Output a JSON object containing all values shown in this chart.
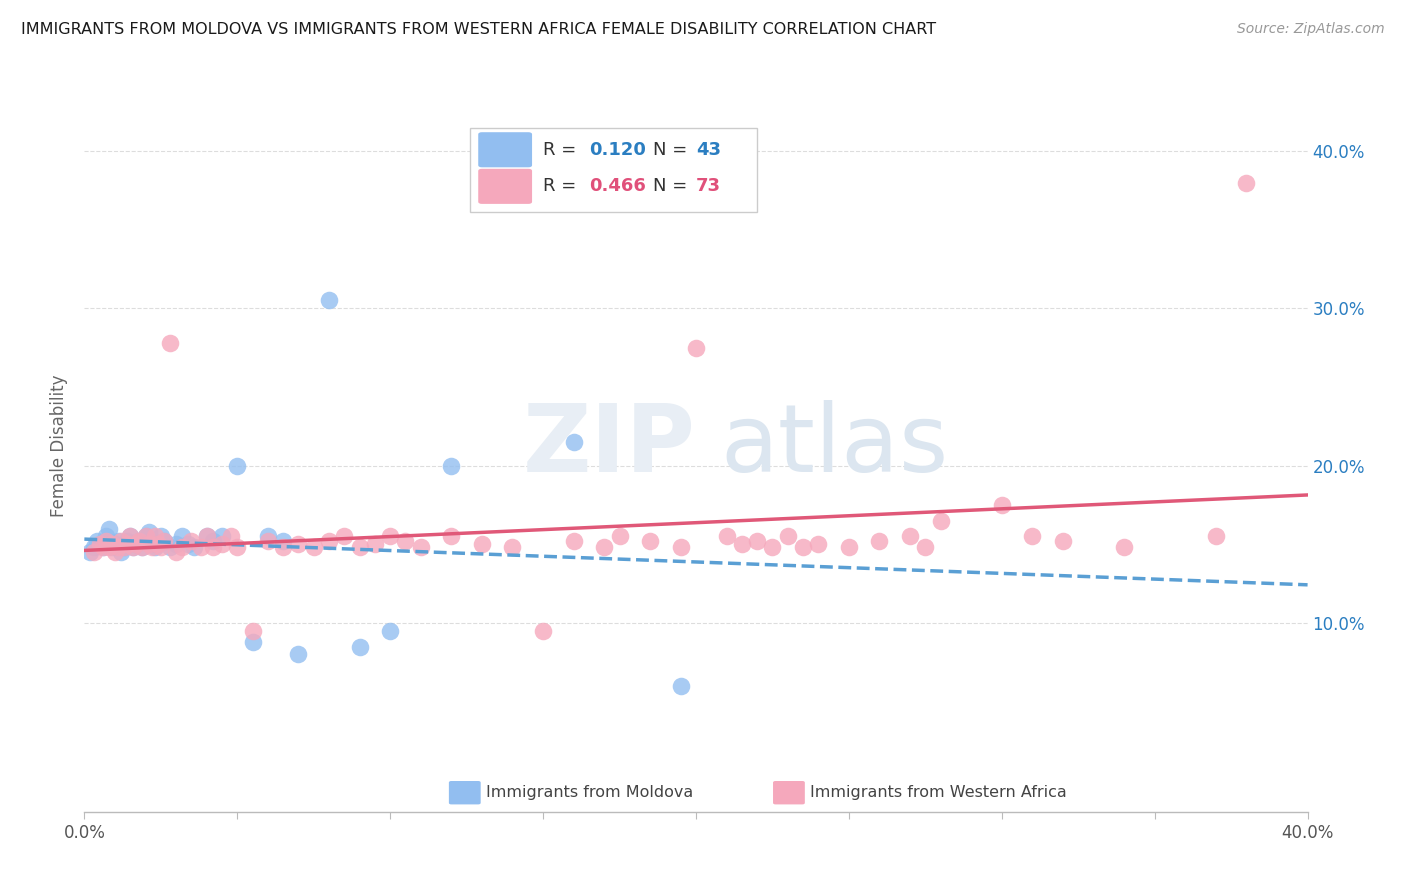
{
  "title": "IMMIGRANTS FROM MOLDOVA VS IMMIGRANTS FROM WESTERN AFRICA FEMALE DISABILITY CORRELATION CHART",
  "source": "Source: ZipAtlas.com",
  "ylabel": "Female Disability",
  "xlim": [
    0.0,
    0.4
  ],
  "ylim": [
    -0.02,
    0.445
  ],
  "yticks": [
    0.1,
    0.2,
    0.3,
    0.4
  ],
  "ytick_labels": [
    "10.0%",
    "20.0%",
    "30.0%",
    "40.0%"
  ],
  "xticks": [
    0.0,
    0.05,
    0.1,
    0.15,
    0.2,
    0.25,
    0.3,
    0.35,
    0.4
  ],
  "xtick_labels": [
    "0.0%",
    "",
    "",
    "",
    "",
    "",
    "",
    "",
    "40.0%"
  ],
  "moldova_color": "#92BEF0",
  "western_africa_color": "#F5A8BC",
  "moldova_R": 0.12,
  "moldova_N": 43,
  "western_africa_R": 0.466,
  "western_africa_N": 73,
  "legend_R_color": "#2B7EC1",
  "legend_wa_color": "#E0507A",
  "background_color": "#FFFFFF",
  "grid_color": "#DDDDDD",
  "moldova_line_color": "#5A9FD4",
  "western_africa_line_color": "#E05878",
  "moldova_scatter_x": [
    0.002,
    0.003,
    0.004,
    0.005,
    0.006,
    0.007,
    0.008,
    0.009,
    0.01,
    0.011,
    0.012,
    0.013,
    0.014,
    0.015,
    0.016,
    0.017,
    0.018,
    0.019,
    0.02,
    0.021,
    0.022,
    0.023,
    0.025,
    0.026,
    0.028,
    0.03,
    0.032,
    0.034,
    0.036,
    0.04,
    0.042,
    0.045,
    0.05,
    0.055,
    0.06,
    0.065,
    0.07,
    0.08,
    0.09,
    0.1,
    0.12,
    0.16,
    0.195
  ],
  "moldova_scatter_y": [
    0.145,
    0.148,
    0.152,
    0.15,
    0.148,
    0.155,
    0.16,
    0.148,
    0.15,
    0.152,
    0.145,
    0.148,
    0.152,
    0.155,
    0.148,
    0.15,
    0.152,
    0.148,
    0.155,
    0.158,
    0.15,
    0.148,
    0.155,
    0.152,
    0.148,
    0.15,
    0.155,
    0.15,
    0.148,
    0.155,
    0.152,
    0.155,
    0.2,
    0.088,
    0.155,
    0.152,
    0.08,
    0.305,
    0.085,
    0.095,
    0.2,
    0.215,
    0.06
  ],
  "western_africa_scatter_x": [
    0.003,
    0.005,
    0.006,
    0.007,
    0.008,
    0.009,
    0.01,
    0.011,
    0.012,
    0.013,
    0.014,
    0.015,
    0.016,
    0.017,
    0.018,
    0.019,
    0.02,
    0.021,
    0.022,
    0.023,
    0.024,
    0.025,
    0.026,
    0.028,
    0.03,
    0.032,
    0.035,
    0.038,
    0.04,
    0.042,
    0.045,
    0.048,
    0.05,
    0.055,
    0.06,
    0.065,
    0.07,
    0.075,
    0.08,
    0.085,
    0.09,
    0.095,
    0.1,
    0.105,
    0.11,
    0.12,
    0.13,
    0.14,
    0.15,
    0.16,
    0.17,
    0.175,
    0.185,
    0.195,
    0.2,
    0.21,
    0.215,
    0.22,
    0.225,
    0.23,
    0.235,
    0.24,
    0.25,
    0.26,
    0.27,
    0.275,
    0.28,
    0.3,
    0.31,
    0.32,
    0.34,
    0.37,
    0.38
  ],
  "western_africa_scatter_y": [
    0.145,
    0.15,
    0.148,
    0.152,
    0.148,
    0.15,
    0.145,
    0.148,
    0.152,
    0.148,
    0.15,
    0.155,
    0.148,
    0.15,
    0.152,
    0.148,
    0.155,
    0.15,
    0.148,
    0.155,
    0.15,
    0.148,
    0.152,
    0.278,
    0.145,
    0.148,
    0.152,
    0.148,
    0.155,
    0.148,
    0.15,
    0.155,
    0.148,
    0.095,
    0.152,
    0.148,
    0.15,
    0.148,
    0.152,
    0.155,
    0.148,
    0.15,
    0.155,
    0.152,
    0.148,
    0.155,
    0.15,
    0.148,
    0.095,
    0.152,
    0.148,
    0.155,
    0.152,
    0.148,
    0.275,
    0.155,
    0.15,
    0.152,
    0.148,
    0.155,
    0.148,
    0.15,
    0.148,
    0.152,
    0.155,
    0.148,
    0.165,
    0.175,
    0.155,
    0.152,
    0.148,
    0.155,
    0.38
  ]
}
